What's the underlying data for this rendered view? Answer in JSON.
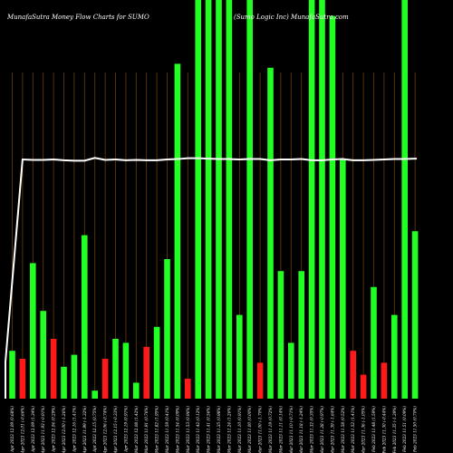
{
  "chart_data": {
    "type": "bar",
    "title": "MunafaSutra  Money  Flow  Charts for SUMO",
    "subtitle": "(Sumo  Logic Inc)  MunafaSutra.com",
    "categories": [
      "Wed 19 Apr 2023 12.09 (0.68%)",
      "Tue 18 Apr 2023 12.01 (-0.66%)",
      "Mon 17 Apr 2023 12.09 (1.34%)",
      "Fri 14 Apr 2023 11.93 (-0.91%)",
      "Thu 13 Apr 2023 12.04 (0.29%)",
      "Wed 12 Apr 2023 12.00 (-1.26%)",
      "Tue 11 Apr 2023 12.16 (1.41%)",
      "Mon 10 Apr 2023 11.99 (-1.32%)",
      "Thu 06 Apr 2023 12.15 (0.75%)",
      "Wed 05 Apr 2023 12.06 (-0.74%)",
      "Tue 04 Apr 2023 12.15 (-0.33%)",
      "Mon 03 Apr 2023 12.19 (0.91%)",
      "Fri 31 Mar 2023 12.08 (1.42%)",
      "Thu 30 Mar 2023 11.91 (0.76%)",
      "Wed 29 Mar 2023 11.82 (1.95%)",
      "Tue 28 Mar 2023 11.59 (0.41%)",
      "Mon 27 Mar 2023 11.54 (0.09%)",
      "Fri 24 Mar 2023 11.53 (0.96%)",
      "Thu 23 Mar 2023 11.42 (0.12%)",
      "Wed 22 Mar 2023 11.41 (0.56%)",
      "Tue 21 Mar 2023 11.35 (0.98%)",
      "Mon 20 Mar 2023 11.24 (1.26%)",
      "Fri 17 Mar 2023 11.10 (0.91%)",
      "Thu 16 Mar 2023 11.00 (0.00%)",
      "Wed 15 Mar 2023 11.00 (-1.70%)",
      "Tue 14 Mar 2023 11.19 (0.72%)",
      "Mon 13 Mar 2023 11.11 (0.14%)",
      "Fri 10 Mar 2023 11.10 (-0.71%)",
      "Thu 09 Mar 2023 11.18 (-1.24%)",
      "Wed 08 Mar 2023 11.32 (0.35%)",
      "Tue 07 Mar 2023 11.28 (-0.97%)",
      "Mon 06 Mar 2023 11.39 (-1.64%)",
      "Fri 03 Mar 2023 11.58 (0.52%)",
      "Thu 02 Mar 2023 11.52 (1.41%)",
      "Wed 01 Mar 2023 11.36 (-1.05%)",
      "Tue 28 Feb 2023 11.48 (1.59%)",
      "Mon 27 Feb 2023 11.30 (-0.44%)",
      "Fri 24 Feb 2023 11.35 (-1.39%)",
      "Thu 23 Feb 2023 11.51 (0.09%)",
      "Wed 22 Feb 2023 11.50 (0.70%)"
    ],
    "values": [
      12,
      10,
      34,
      22,
      15,
      8,
      11,
      41,
      2,
      10,
      15,
      14,
      4,
      13,
      18,
      35,
      84,
      5,
      100,
      100,
      100,
      100,
      21,
      100,
      9,
      83,
      32,
      14,
      32,
      100,
      100,
      96,
      60,
      12,
      6,
      28,
      9,
      21,
      100,
      42
    ],
    "directions": [
      "up",
      "down",
      "up",
      "up",
      "down",
      "up",
      "up",
      "up",
      "up",
      "down",
      "up",
      "up",
      "up",
      "down",
      "up",
      "up",
      "up",
      "down",
      "up",
      "up",
      "up",
      "up",
      "up",
      "up",
      "down",
      "up",
      "up",
      "up",
      "up",
      "up",
      "up",
      "up",
      "up",
      "down",
      "down",
      "up",
      "down",
      "up",
      "up",
      "up"
    ],
    "price_line": [
      9.2,
      60.0,
      59.9,
      59.9,
      60.0,
      59.8,
      59.7,
      59.7,
      60.4,
      59.9,
      60.0,
      59.8,
      59.9,
      59.8,
      59.8,
      60.0,
      60.1,
      60.3,
      60.3,
      60.2,
      60.1,
      60.1,
      60.0,
      60.1,
      60.1,
      59.8,
      60.0,
      60.0,
      60.1,
      59.8,
      59.8,
      60.0,
      60.1,
      59.8,
      59.8,
      59.9,
      60.0,
      60.1,
      60.1,
      60.2
    ],
    "ylim": [
      0,
      100
    ],
    "grid": "vertical",
    "xlabel": "",
    "ylabel": "",
    "colors": {
      "up": "#22ff22",
      "down": "#ff1a1a",
      "grid": "#6b3d08",
      "line": "#ffffff",
      "background": "#000000",
      "text": "#ffffff"
    }
  }
}
